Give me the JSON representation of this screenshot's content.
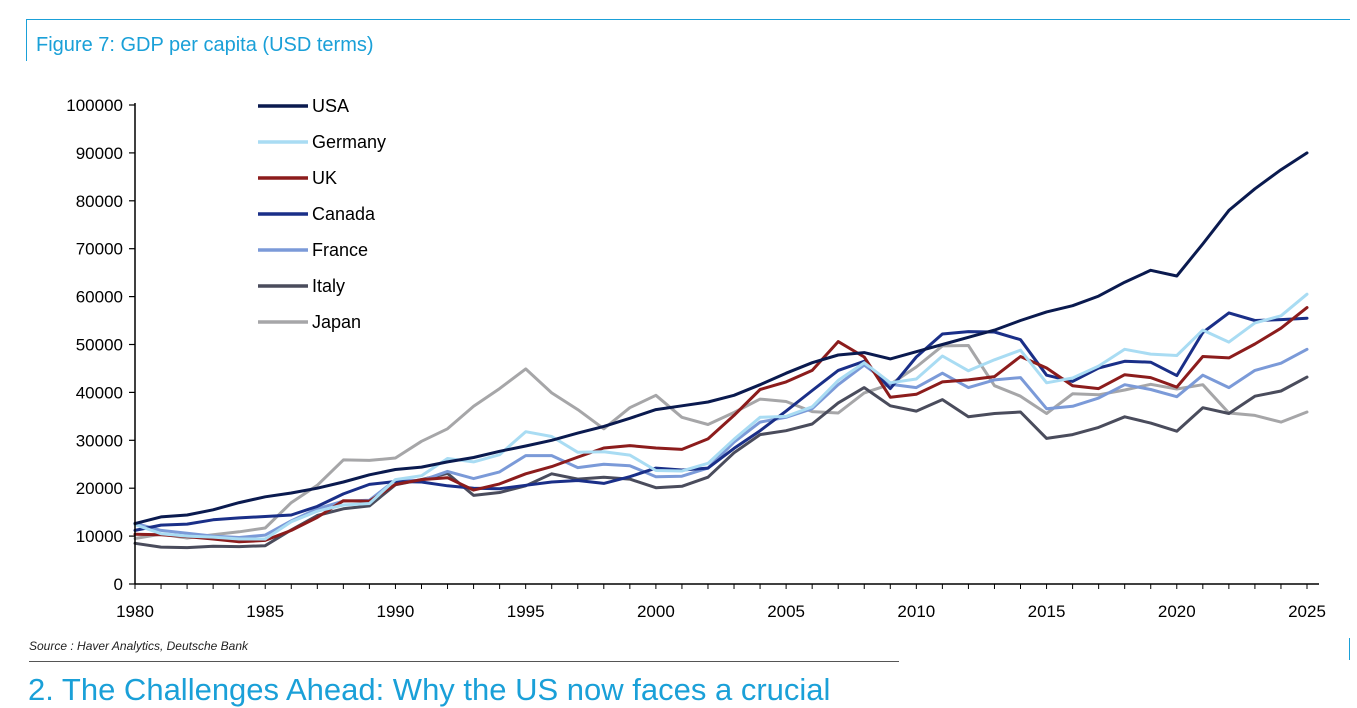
{
  "figure_title": "Figure 7: GDP per capita (USD terms)",
  "source": "Source : Haver Analytics, Deutsche Bank",
  "next_heading": "2. The Challenges Ahead: Why the US now faces a crucial",
  "chart_data": {
    "type": "line",
    "title": "",
    "xlabel": "",
    "ylabel": "",
    "xlim": [
      1980,
      2025
    ],
    "ylim": [
      0,
      100000
    ],
    "x_ticks": [
      1980,
      1985,
      1990,
      1995,
      2000,
      2005,
      2010,
      2015,
      2020,
      2025
    ],
    "y_ticks": [
      0,
      10000,
      20000,
      30000,
      40000,
      50000,
      60000,
      70000,
      80000,
      90000,
      100000
    ],
    "grid": false,
    "legend_position": "top-left",
    "x": [
      1980,
      1981,
      1982,
      1983,
      1984,
      1985,
      1986,
      1987,
      1988,
      1989,
      1990,
      1991,
      1992,
      1993,
      1994,
      1995,
      1996,
      1997,
      1998,
      1999,
      2000,
      2001,
      2002,
      2003,
      2004,
      2005,
      2006,
      2007,
      2008,
      2009,
      2010,
      2011,
      2012,
      2013,
      2014,
      2015,
      2016,
      2017,
      2018,
      2019,
      2020,
      2021,
      2022,
      2023,
      2024,
      2025
    ],
    "series": [
      {
        "name": "USA",
        "color": "#0a1a4f",
        "values": [
          12600,
          14000,
          14400,
          15500,
          17000,
          18200,
          19000,
          20000,
          21300,
          22800,
          23900,
          24400,
          25500,
          26400,
          27700,
          28800,
          30000,
          31500,
          32900,
          34600,
          36400,
          37200,
          38000,
          39400,
          41600,
          44000,
          46200,
          47800,
          48300,
          47000,
          48500,
          50000,
          51500,
          53000,
          55000,
          56800,
          58100,
          60100,
          63000,
          65500,
          64300,
          71000,
          78000,
          82500,
          86500,
          90000
        ]
      },
      {
        "name": "Germany",
        "color": "#a9dcf3",
        "values": [
          12400,
          10500,
          10000,
          9800,
          9400,
          9400,
          13000,
          15200,
          16500,
          16800,
          21800,
          22600,
          26200,
          25500,
          27000,
          31800,
          30800,
          27500,
          27600,
          26900,
          23700,
          23600,
          25200,
          30200,
          34800,
          35000,
          37000,
          42500,
          46200,
          42000,
          42800,
          47600,
          44500,
          46800,
          48800,
          42000,
          43000,
          45500,
          49000,
          48000,
          47700,
          53000,
          50500,
          54500,
          56000,
          60500
        ]
      },
      {
        "name": "UK",
        "color": "#8c1c1c",
        "values": [
          10400,
          10300,
          9900,
          9400,
          8800,
          9100,
          11200,
          13900,
          17400,
          17300,
          20800,
          21800,
          22200,
          19600,
          20900,
          23000,
          24500,
          26500,
          28400,
          28900,
          28400,
          28100,
          30300,
          35200,
          40600,
          42200,
          44600,
          50600,
          47400,
          39000,
          39600,
          42200,
          42600,
          43300,
          47500,
          45100,
          41400,
          40800,
          43700,
          43100,
          41100,
          47500,
          47200,
          50100,
          53400,
          57700
        ]
      },
      {
        "name": "Canada",
        "color": "#1a2f88",
        "values": [
          11200,
          12300,
          12500,
          13400,
          13800,
          14100,
          14400,
          16200,
          18800,
          20800,
          21400,
          21300,
          20500,
          20000,
          19900,
          20600,
          21300,
          21600,
          21000,
          22400,
          24200,
          23800,
          24200,
          28300,
          32000,
          36100,
          40400,
          44600,
          46500,
          40800,
          47400,
          52200,
          52700,
          52600,
          51000,
          43600,
          42300,
          45100,
          46500,
          46300,
          43500,
          52500,
          56600,
          55000,
          55200,
          55500
        ]
      },
      {
        "name": "France",
        "color": "#7b9ad8",
        "values": [
          12700,
          11200,
          10600,
          10000,
          9700,
          10200,
          13200,
          15700,
          17300,
          17500,
          21700,
          21600,
          23500,
          22000,
          23400,
          26800,
          26800,
          24300,
          25000,
          24700,
          22400,
          22500,
          24200,
          29600,
          33800,
          34800,
          36600,
          41600,
          45700,
          41700,
          41000,
          44000,
          41000,
          42600,
          43100,
          36600,
          37100,
          38800,
          41600,
          40600,
          39100,
          43600,
          41000,
          44600,
          46100,
          49000
        ]
      },
      {
        "name": "Italy",
        "color": "#4a4c5c",
        "values": [
          8500,
          7700,
          7600,
          7900,
          7800,
          8000,
          11300,
          14300,
          15700,
          16300,
          20700,
          21800,
          23100,
          18500,
          19100,
          20500,
          23000,
          21900,
          22300,
          21900,
          20100,
          20400,
          22300,
          27400,
          31200,
          32000,
          33400,
          37800,
          41000,
          37200,
          36100,
          38500,
          34900,
          35600,
          35900,
          30400,
          31200,
          32700,
          34900,
          33600,
          31900,
          36800,
          35600,
          39200,
          40300,
          43200
        ]
      },
      {
        "name": "Japan",
        "color": "#a6a6a8",
        "values": [
          9500,
          10400,
          9600,
          10300,
          10900,
          11700,
          17000,
          20600,
          25900,
          25800,
          26300,
          29800,
          32400,
          37100,
          40800,
          44900,
          39900,
          36400,
          32400,
          36800,
          39400,
          34800,
          33300,
          35800,
          38600,
          38100,
          36000,
          35700,
          39900,
          41700,
          45300,
          49700,
          49800,
          41400,
          39200,
          35600,
          39700,
          39500,
          40500,
          41700,
          40700,
          41600,
          35700,
          35200,
          33800,
          35900
        ]
      }
    ]
  }
}
